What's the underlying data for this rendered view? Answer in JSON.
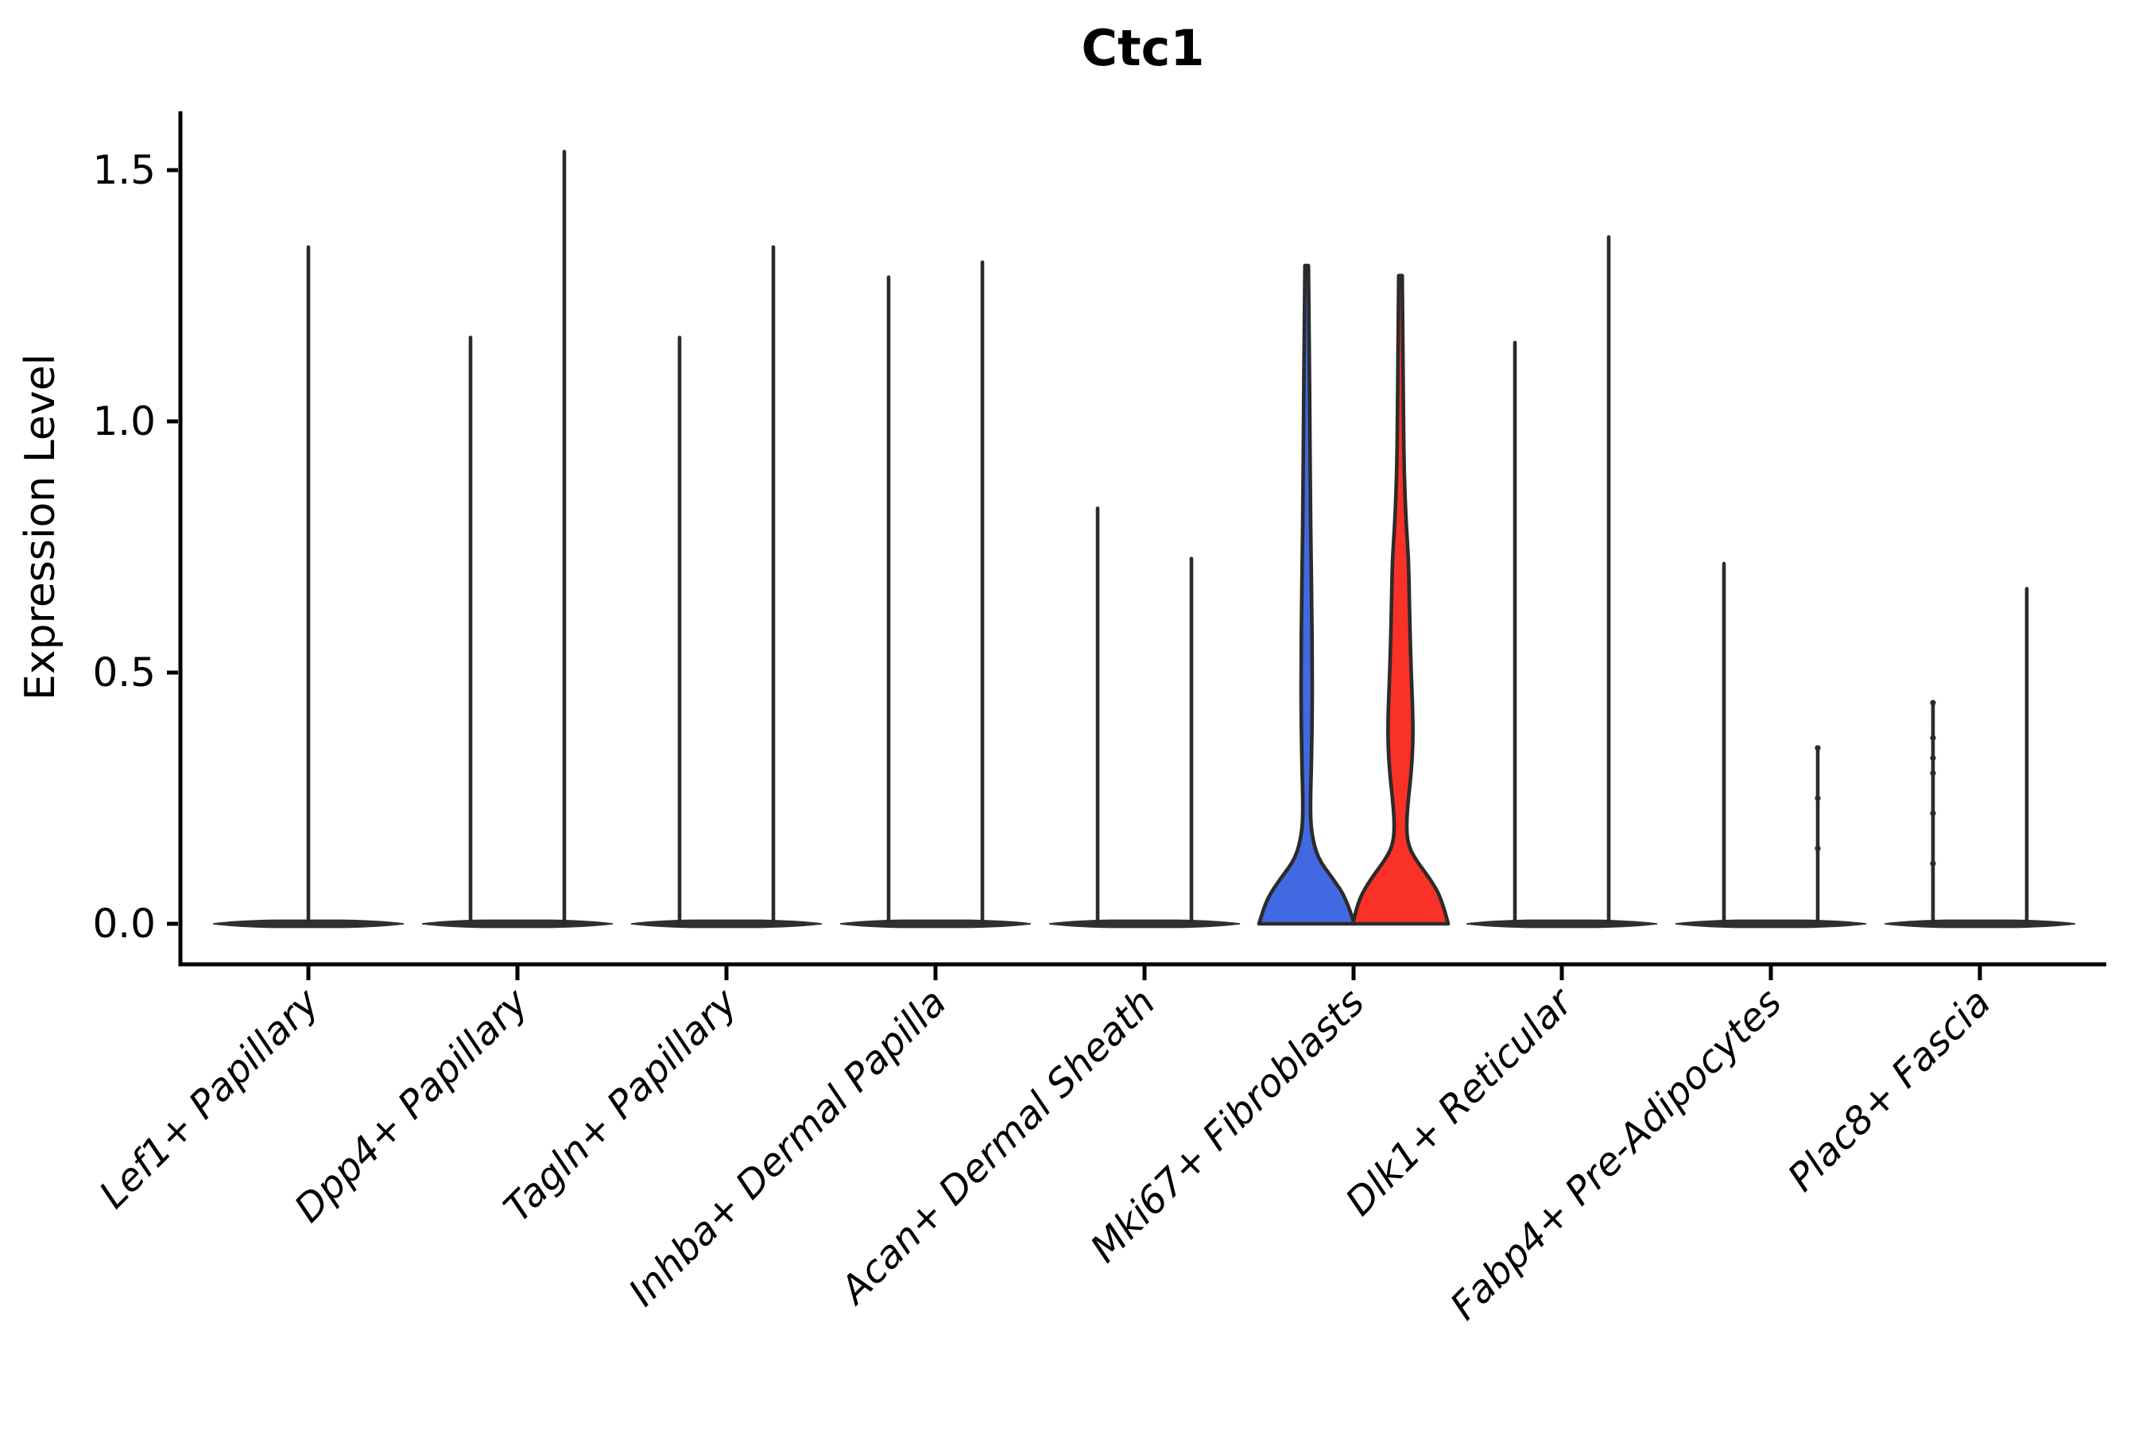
{
  "chart_data": {
    "type": "violin",
    "title": "Ctc1",
    "ylabel": "Expression Level",
    "xlabel": "",
    "ylim": [
      0,
      1.62
    ],
    "grid": false,
    "legend_position": "none",
    "yticks": [
      {
        "value": 0.0,
        "label": "0.0"
      },
      {
        "value": 0.5,
        "label": "0.5"
      },
      {
        "value": 1.0,
        "label": "1.0"
      },
      {
        "value": 1.5,
        "label": "1.5"
      }
    ],
    "colors": {
      "outline": "#2B2B2B",
      "base_fill": "#2F2F2F",
      "axis": "#000000",
      "highlight_group1": "#4169E1",
      "highlight_group2": "#FA3127"
    },
    "categories": [
      {
        "label": "Lef1+ Papillary",
        "violins": [
          {
            "group": "all",
            "position": "center",
            "max": 1.35,
            "fill": "none"
          }
        ]
      },
      {
        "label": "Dpp4+ Papillary",
        "violins": [
          {
            "group": "g1",
            "position": "left",
            "max": 1.17,
            "fill": "none"
          },
          {
            "group": "g2",
            "position": "right",
            "max": 1.54,
            "fill": "none"
          }
        ]
      },
      {
        "label": "Tagln+ Papillary",
        "violins": [
          {
            "group": "g1",
            "position": "left",
            "max": 1.17,
            "fill": "none"
          },
          {
            "group": "g2",
            "position": "right",
            "max": 1.35,
            "fill": "none"
          }
        ]
      },
      {
        "label": "Inhba+ Dermal Papilla",
        "violins": [
          {
            "group": "g1",
            "position": "left",
            "max": 1.29,
            "fill": "none"
          },
          {
            "group": "g2",
            "position": "right",
            "max": 1.32,
            "fill": "none"
          }
        ]
      },
      {
        "label": "Acan+ Dermal Sheath",
        "violins": [
          {
            "group": "g1",
            "position": "left",
            "max": 0.83,
            "fill": "none"
          },
          {
            "group": "g2",
            "position": "right",
            "max": 0.73,
            "fill": "none"
          }
        ]
      },
      {
        "label": "Mki67+ Fibroblasts",
        "violins": [
          {
            "group": "g1",
            "position": "left",
            "max": 1.31,
            "fill": "#4169E1",
            "profile": [
              [
                0,
                60
              ],
              [
                0.05,
                50
              ],
              [
                0.09,
                33
              ],
              [
                0.13,
                14
              ],
              [
                0.18,
                6
              ],
              [
                0.23,
                4.5
              ],
              [
                0.32,
                6
              ],
              [
                0.42,
                7
              ],
              [
                0.52,
                7
              ],
              [
                0.62,
                6.5
              ],
              [
                0.73,
                5.5
              ],
              [
                0.85,
                4.6
              ],
              [
                1.0,
                4.0
              ],
              [
                1.15,
                3.2
              ],
              [
                1.31,
                2.2
              ]
            ]
          },
          {
            "group": "g2",
            "position": "right",
            "max": 1.29,
            "fill": "#FA3127",
            "profile": [
              [
                0,
                60
              ],
              [
                0.05,
                52
              ],
              [
                0.09,
                37
              ],
              [
                0.13,
                18
              ],
              [
                0.16,
                9
              ],
              [
                0.2,
                7.5
              ],
              [
                0.25,
                10
              ],
              [
                0.3,
                13.5
              ],
              [
                0.36,
                15.8
              ],
              [
                0.42,
                15.5
              ],
              [
                0.5,
                13.5
              ],
              [
                0.58,
                12
              ],
              [
                0.66,
                11
              ],
              [
                0.73,
                10
              ],
              [
                0.8,
                7
              ],
              [
                0.9,
                4.6
              ],
              [
                1.0,
                3.8
              ],
              [
                1.12,
                3.2
              ],
              [
                1.29,
                2.2
              ]
            ]
          }
        ]
      },
      {
        "label": "Dlk1+ Reticular",
        "violins": [
          {
            "group": "g1",
            "position": "left",
            "max": 1.16,
            "fill": "none"
          },
          {
            "group": "g2",
            "position": "right",
            "max": 1.37,
            "fill": "none"
          }
        ]
      },
      {
        "label": "Fabp4+ Pre-Adipocytes",
        "violins": [
          {
            "group": "g1",
            "position": "left",
            "max": 0.72,
            "fill": "none"
          },
          {
            "group": "g2",
            "position": "right",
            "max": 0.35,
            "fill": "none",
            "points": [
              0.35,
              0.25,
              0.15
            ]
          }
        ]
      },
      {
        "label": "Plac8+ Fascia",
        "violins": [
          {
            "group": "g1",
            "position": "left",
            "max": 0.44,
            "fill": "none",
            "points": [
              0.44,
              0.37,
              0.33,
              0.3,
              0.22,
              0.12
            ]
          },
          {
            "group": "g2",
            "position": "right",
            "max": 0.67,
            "fill": "none"
          }
        ]
      }
    ]
  }
}
